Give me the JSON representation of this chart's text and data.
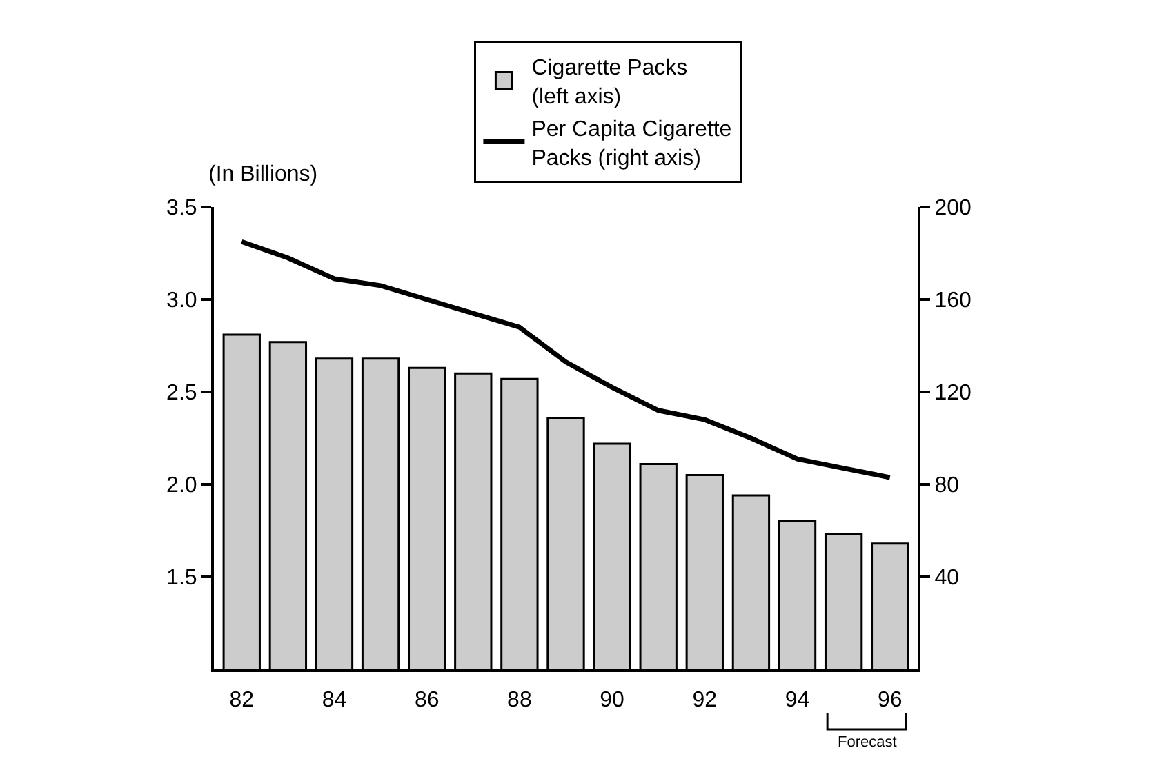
{
  "chart_data": {
    "type": "bar",
    "ylabel": "(In Billions)",
    "categories": [
      "82",
      null,
      "84",
      null,
      "86",
      null,
      "88",
      null,
      "90",
      null,
      "92",
      null,
      "94",
      null,
      "96"
    ],
    "series": [
      {
        "name": "Cigarette Packs (left axis)",
        "color": "#cccccc",
        "values": [
          2.81,
          2.77,
          2.68,
          2.68,
          2.63,
          2.6,
          2.57,
          2.36,
          2.22,
          2.11,
          2.05,
          1.94,
          1.8,
          1.73,
          1.68
        ]
      },
      {
        "name": "Per Capita Cigarette Packs (right axis)",
        "type": "line",
        "axis": "y2",
        "color": "#000000",
        "values": [
          185,
          178,
          169,
          166,
          160,
          154,
          148,
          133,
          122,
          112,
          108,
          100,
          91,
          87,
          83
        ]
      }
    ],
    "ylim": [
      1.0,
      3.5
    ],
    "yticks": [
      1.5,
      {
        "value": 2,
        "label": "2.0"
      },
      2.5,
      {
        "value": 3,
        "label": "3.0"
      },
      3.5
    ],
    "y2lim": [
      0,
      200
    ],
    "y2ticks": [
      40,
      80,
      120,
      160,
      200
    ],
    "annotations": [
      "Forecast"
    ],
    "grid": false,
    "legend": "top",
    "marker": "none",
    "line_style": "solid"
  }
}
